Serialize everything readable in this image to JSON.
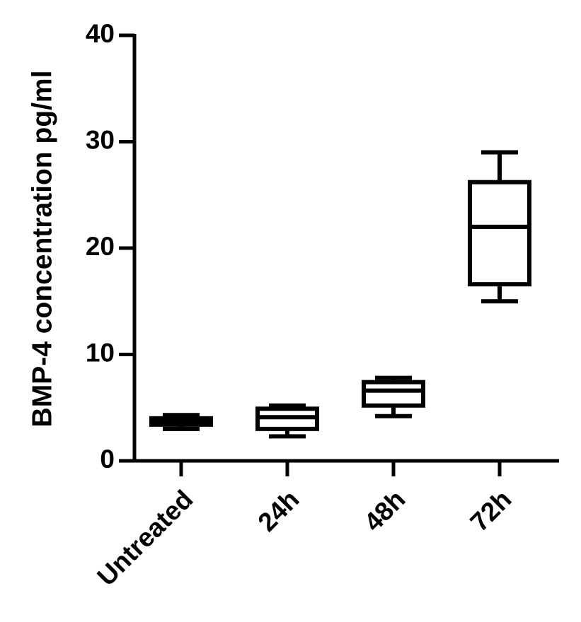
{
  "chart_data": {
    "type": "box",
    "y_label": "BMP-4 concentration pg/ml",
    "categories": [
      "Untreated",
      "24h",
      "48h",
      "72h"
    ],
    "min": [
      3.0,
      2.3,
      4.2,
      15.0
    ],
    "q1": [
      3.4,
      3.0,
      5.2,
      16.6
    ],
    "median": [
      3.7,
      4.1,
      6.6,
      22.0
    ],
    "q3": [
      4.0,
      4.9,
      7.4,
      26.2
    ],
    "max": [
      4.3,
      5.2,
      7.8,
      29.0
    ],
    "color": "#000000",
    "ylim": [
      0,
      40
    ],
    "yticks": [
      0,
      10,
      20,
      30,
      40
    ]
  }
}
